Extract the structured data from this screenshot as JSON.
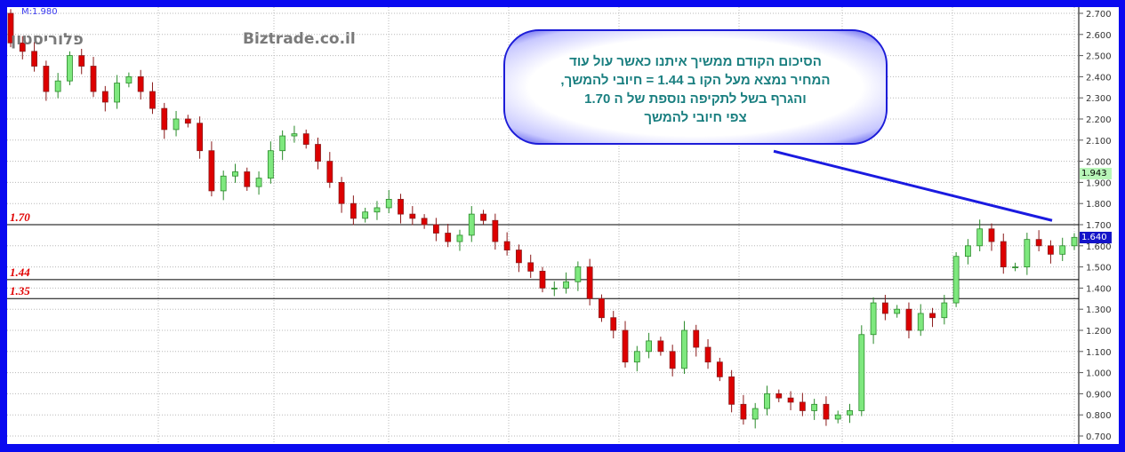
{
  "header": {
    "max_label": "M:1.980"
  },
  "watermarks": {
    "stock_name": "פלוריסטון",
    "site": "Biztrade.co.il"
  },
  "callout": {
    "lines": [
      "הסיכום הקודם ממשיך איתנו כאשר  עול  עוד",
      "המחיר נמצא   מעל  הקו  ב 1.44 = חיובי להמשך,",
      "והגרף בשל לתקיפה  נוספת של  ה 1.70",
      "צפי חיובי להמשך"
    ]
  },
  "levels": [
    {
      "label": "1.70",
      "value": 1.7
    },
    {
      "label": "1.44",
      "value": 1.44
    },
    {
      "label": "1.35",
      "value": 1.35
    }
  ],
  "price_markers": [
    {
      "label": "1.943",
      "value": 1.943,
      "bg": "#b8f5b8",
      "fg": "#000000"
    },
    {
      "label": "1.640",
      "value": 1.64,
      "bg": "#1414c8",
      "fg": "#ffffff"
    }
  ],
  "colors": {
    "frame": "#0a0af0",
    "up": "#7ee87e",
    "down": "#dd0000",
    "level_line": "#000000",
    "trendline": "#1a1ae0",
    "level_label": "#e00000"
  },
  "chart_data": {
    "type": "candlestick",
    "title": "",
    "ylim": [
      0.7,
      2.7
    ],
    "y_ticks": [
      "2.700",
      "2.600",
      "2.500",
      "2.400",
      "2.300",
      "2.200",
      "2.100",
      "2.000",
      "1.900",
      "1.800",
      "1.700",
      "1.600",
      "1.500",
      "1.400",
      "1.300",
      "1.200",
      "1.100",
      "1.000",
      "0.900",
      "0.800",
      "0.700"
    ],
    "grid": true,
    "open_first": 2.7,
    "close": [
      2.56,
      2.52,
      2.45,
      2.33,
      2.38,
      2.5,
      2.45,
      2.33,
      2.28,
      2.37,
      2.4,
      2.33,
      2.25,
      2.15,
      2.2,
      2.18,
      2.05,
      1.86,
      1.93,
      1.95,
      1.88,
      1.92,
      2.05,
      2.12,
      2.13,
      2.08,
      2.0,
      1.9,
      1.8,
      1.73,
      1.76,
      1.78,
      1.82,
      1.75,
      1.73,
      1.7,
      1.66,
      1.62,
      1.65,
      1.75,
      1.72,
      1.62,
      1.58,
      1.52,
      1.48,
      1.4,
      1.4,
      1.43,
      1.5,
      1.35,
      1.26,
      1.2,
      1.05,
      1.1,
      1.15,
      1.1,
      1.02,
      1.2,
      1.12,
      1.05,
      0.98,
      0.85,
      0.78,
      0.83,
      0.9,
      0.88,
      0.86,
      0.82,
      0.85,
      0.78,
      0.8,
      0.82,
      1.18,
      1.33,
      1.28,
      1.3,
      1.2,
      1.28,
      1.26,
      1.33,
      1.55,
      1.6,
      1.68,
      1.62,
      1.5,
      1.5,
      1.63,
      1.6,
      1.56,
      1.6,
      1.64
    ],
    "trendline": {
      "from": 1.93,
      "to": 1.72
    }
  }
}
